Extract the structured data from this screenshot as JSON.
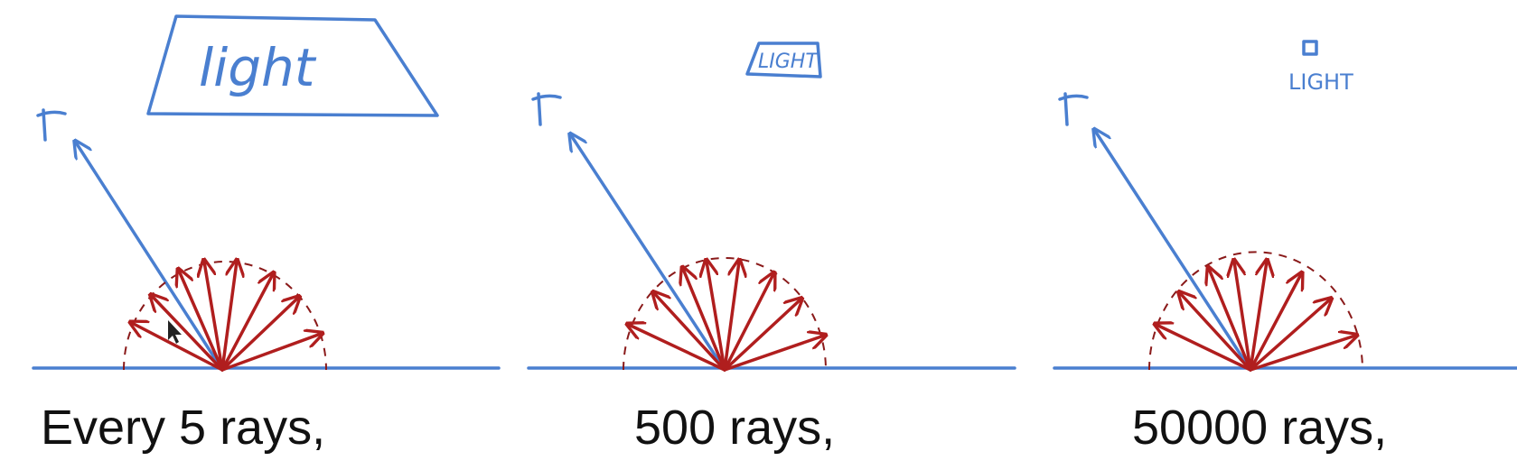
{
  "colors": {
    "blue": "#4a7fd0",
    "red": "#b01e1e",
    "text": "#111111"
  },
  "panels": [
    {
      "caption": "Every 5 rays,",
      "light_label": "light",
      "light_size": "large"
    },
    {
      "caption": "500 rays,",
      "light_label": "LIGHT",
      "light_size": "small"
    },
    {
      "caption": "50000 rays,",
      "light_label": "LIGHT",
      "light_size": "tiny"
    }
  ],
  "icons": {
    "eye": "eye-icon",
    "cursor": "cursor-arrow-icon"
  }
}
